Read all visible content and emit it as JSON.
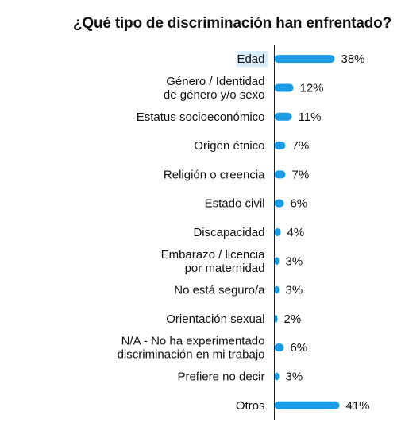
{
  "chart_data": {
    "type": "bar",
    "orientation": "horizontal",
    "title": "¿Qué tipo de discriminación han enfrentado?",
    "categories": [
      [
        "Edad"
      ],
      [
        "Género / Identidad",
        "de género y/o sexo"
      ],
      [
        "Estatus socioeconómico"
      ],
      [
        "Origen étnico"
      ],
      [
        "Religión o creencia"
      ],
      [
        "Estado civil"
      ],
      [
        "Discapacidad"
      ],
      [
        "Embarazo / licencia",
        "por maternidad"
      ],
      [
        "No está seguro/a"
      ],
      [
        "Orientación sexual"
      ],
      [
        "N/A - No ha experimentado",
        "discriminación en mi trabajo"
      ],
      [
        "Prefiere no decir"
      ],
      [
        "Otros"
      ]
    ],
    "values": [
      38,
      12,
      11,
      7,
      7,
      6,
      4,
      3,
      3,
      2,
      6,
      3,
      41
    ],
    "value_labels": [
      "38%",
      "12%",
      "11%",
      "7%",
      "7%",
      "6%",
      "4%",
      "3%",
      "3%",
      "2%",
      "6%",
      "3%",
      "41%"
    ],
    "xlim": [
      0,
      41
    ],
    "highlighted_category": "Edad",
    "colors": {
      "bar": "#1a9be3",
      "axis": "#222222",
      "highlight": "#d9ecf9"
    }
  }
}
